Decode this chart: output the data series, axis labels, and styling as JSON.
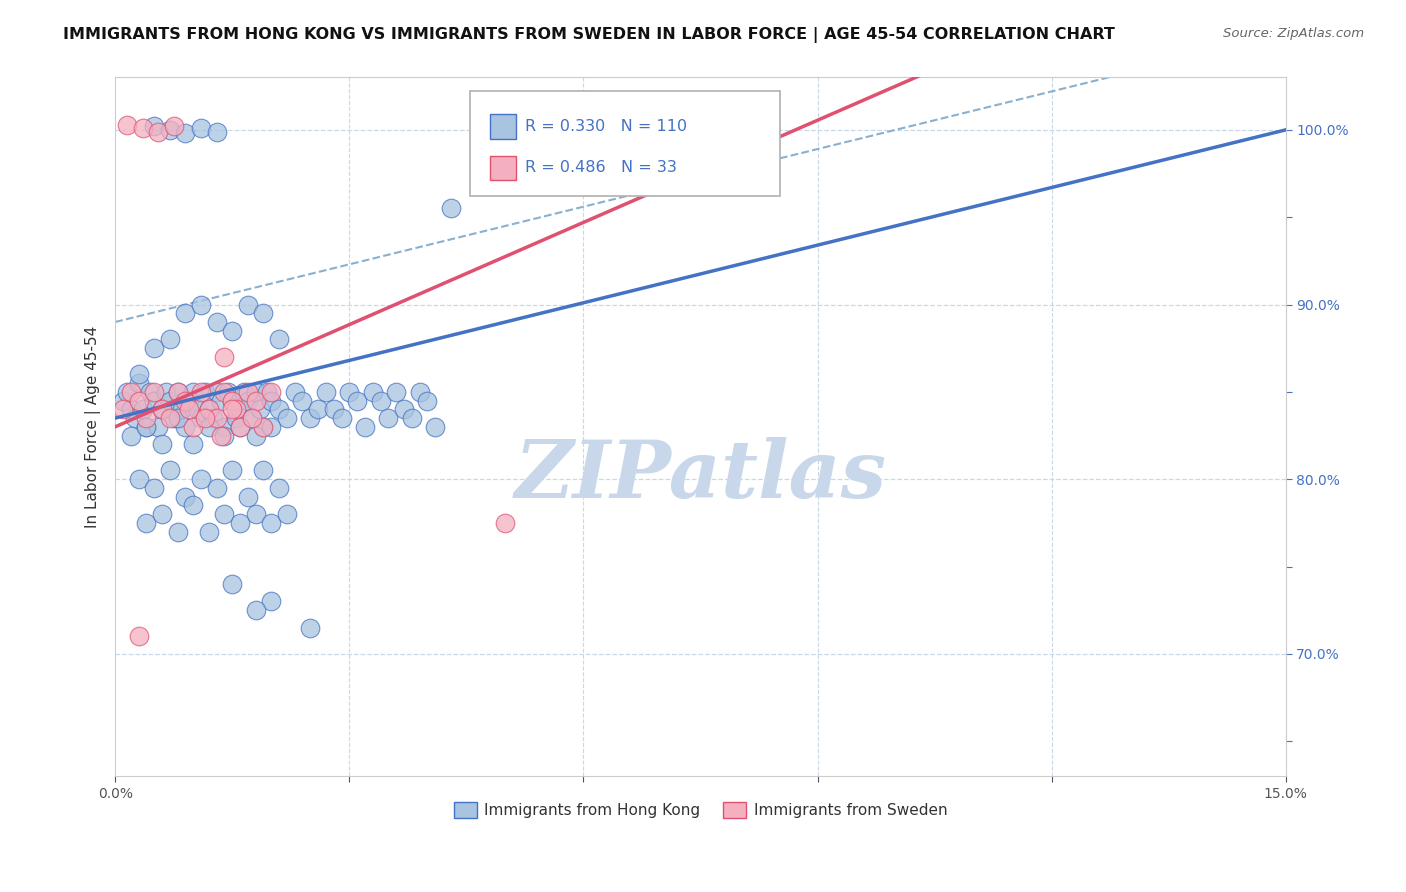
{
  "title": "IMMIGRANTS FROM HONG KONG VS IMMIGRANTS FROM SWEDEN IN LABOR FORCE | AGE 45-54 CORRELATION CHART",
  "source": "Source: ZipAtlas.com",
  "ylabel": "In Labor Force | Age 45-54",
  "xlim": [
    0.0,
    15.0
  ],
  "ylim": [
    63.0,
    103.0
  ],
  "R_hk": 0.33,
  "N_hk": 110,
  "R_sw": 0.486,
  "N_sw": 33,
  "blue_line_color": "#4472c4",
  "pink_line_color": "#e05070",
  "dot_blue_face": "#a8c4e0",
  "dot_blue_edge": "#4472c4",
  "dot_pink_face": "#f4b0c0",
  "dot_pink_edge": "#e05070",
  "dash_color": "#8ab0d0",
  "grid_color": "#c8d8e8",
  "background_color": "#ffffff",
  "watermark": "ZIPatlas",
  "watermark_color": "#c8d8ea",
  "legend_label_hk": "Immigrants from Hong Kong",
  "legend_label_sw": "Immigrants from Sweden",
  "hk_x": [
    0.1,
    0.15,
    0.2,
    0.25,
    0.3,
    0.35,
    0.4,
    0.45,
    0.5,
    0.55,
    0.6,
    0.65,
    0.7,
    0.75,
    0.8,
    0.85,
    0.9,
    0.95,
    1.0,
    1.05,
    1.1,
    1.15,
    1.2,
    1.25,
    1.3,
    1.35,
    1.4,
    1.45,
    1.5,
    1.55,
    1.6,
    1.65,
    1.7,
    1.75,
    1.8,
    1.85,
    1.9,
    1.95,
    2.0,
    2.1,
    2.2,
    2.3,
    2.4,
    2.5,
    2.6,
    2.7,
    2.8,
    2.9,
    3.0,
    3.1,
    3.2,
    3.3,
    3.4,
    3.5,
    3.6,
    3.7,
    3.8,
    3.9,
    4.0,
    4.1,
    0.3,
    0.5,
    0.7,
    0.9,
    1.1,
    1.3,
    1.5,
    1.7,
    1.9,
    2.1,
    0.2,
    0.4,
    0.6,
    0.8,
    1.0,
    1.2,
    1.4,
    1.6,
    1.8,
    2.0,
    0.3,
    0.5,
    0.7,
    0.9,
    1.1,
    1.3,
    1.5,
    1.7,
    1.9,
    2.1,
    0.4,
    0.6,
    0.8,
    1.0,
    1.2,
    1.4,
    1.6,
    1.8,
    2.0,
    2.2,
    1.5,
    2.0,
    1.8,
    2.5,
    0.5,
    0.7,
    0.9,
    1.1,
    1.3,
    4.3
  ],
  "hk_y": [
    84.5,
    85.0,
    84.0,
    83.5,
    85.5,
    84.0,
    83.0,
    85.0,
    84.5,
    83.0,
    84.0,
    85.0,
    84.5,
    83.5,
    85.0,
    84.0,
    83.0,
    84.5,
    85.0,
    84.0,
    83.5,
    85.0,
    84.0,
    83.5,
    85.0,
    84.5,
    83.0,
    85.0,
    84.5,
    83.5,
    84.0,
    85.0,
    84.5,
    83.5,
    85.0,
    84.0,
    83.0,
    85.0,
    84.5,
    84.0,
    83.5,
    85.0,
    84.5,
    83.5,
    84.0,
    85.0,
    84.0,
    83.5,
    85.0,
    84.5,
    83.0,
    85.0,
    84.5,
    83.5,
    85.0,
    84.0,
    83.5,
    85.0,
    84.5,
    83.0,
    86.0,
    87.5,
    88.0,
    89.5,
    90.0,
    89.0,
    88.5,
    90.0,
    89.5,
    88.0,
    82.5,
    83.0,
    82.0,
    83.5,
    82.0,
    83.0,
    82.5,
    83.0,
    82.5,
    83.0,
    80.0,
    79.5,
    80.5,
    79.0,
    80.0,
    79.5,
    80.5,
    79.0,
    80.5,
    79.5,
    77.5,
    78.0,
    77.0,
    78.5,
    77.0,
    78.0,
    77.5,
    78.0,
    77.5,
    78.0,
    74.0,
    73.0,
    72.5,
    71.5,
    100.2,
    100.0,
    99.8,
    100.1,
    99.9,
    95.5
  ],
  "sw_x": [
    0.1,
    0.2,
    0.3,
    0.4,
    0.5,
    0.6,
    0.7,
    0.8,
    0.9,
    1.0,
    1.1,
    1.2,
    1.3,
    1.4,
    1.5,
    1.6,
    1.7,
    1.8,
    1.9,
    2.0,
    0.15,
    0.35,
    0.55,
    0.75,
    0.95,
    1.15,
    1.35,
    1.55,
    1.75,
    1.4,
    5.0,
    1.5,
    0.3
  ],
  "sw_y": [
    84.0,
    85.0,
    84.5,
    83.5,
    85.0,
    84.0,
    83.5,
    85.0,
    84.5,
    83.0,
    85.0,
    84.0,
    83.5,
    85.0,
    84.5,
    83.0,
    85.0,
    84.5,
    83.0,
    85.0,
    100.3,
    100.1,
    99.9,
    100.2,
    84.0,
    83.5,
    82.5,
    84.0,
    83.5,
    87.0,
    77.5,
    84.0,
    71.0
  ]
}
